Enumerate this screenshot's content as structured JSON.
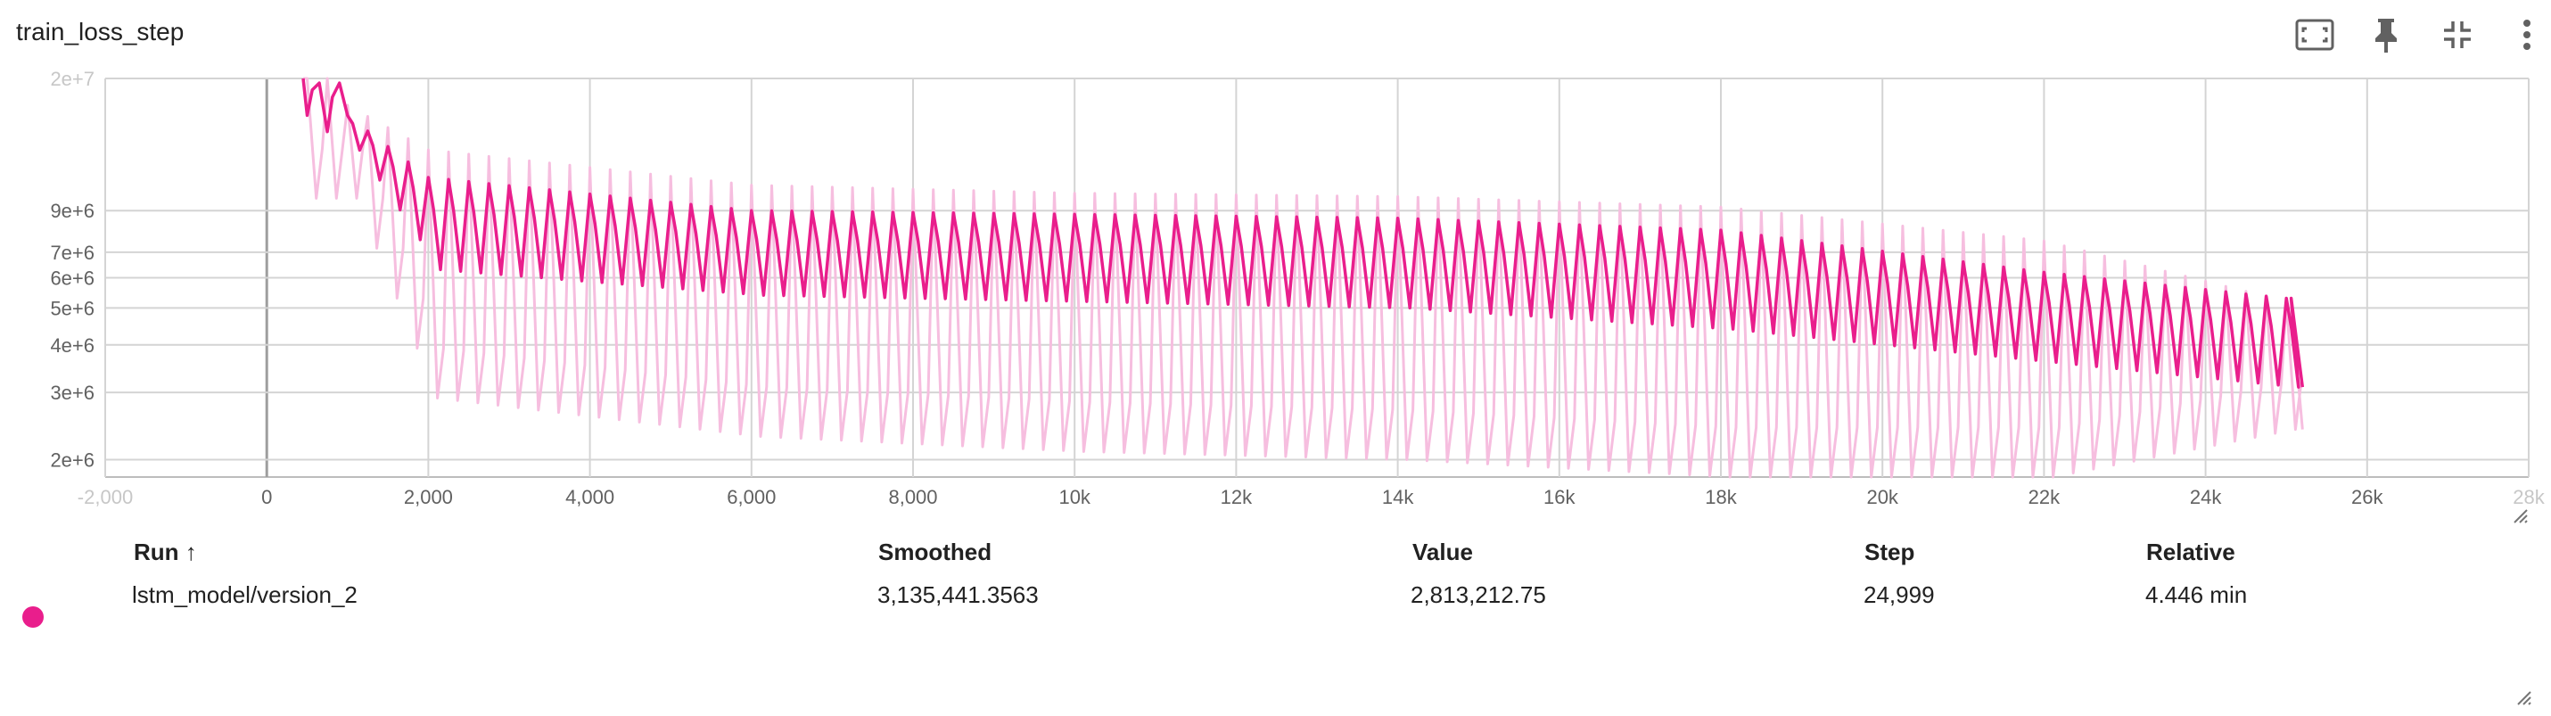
{
  "card": {
    "title": "train_loss_step"
  },
  "toolbar": {
    "icons": [
      "fit-to-data-icon",
      "pin-icon",
      "collapse-icon",
      "more-vert-icon"
    ]
  },
  "colors": {
    "smoothed": "#e91e8c",
    "raw": "#f6bedf",
    "grid": "#d4d4d4",
    "axis_text": "#616161",
    "icon": "#616161"
  },
  "chart_data": {
    "type": "line",
    "xlabel": "",
    "ylabel": "",
    "yscale": "log",
    "xlim": [
      -2000,
      28000
    ],
    "ylim": [
      1800000,
      20000000
    ],
    "x_ticks": [
      "-2,000",
      "0",
      "2,000",
      "4,000",
      "6,000",
      "8,000",
      "10k",
      "12k",
      "14k",
      "16k",
      "18k",
      "20k",
      "22k",
      "24k",
      "26k",
      "28k"
    ],
    "y_ticks": [
      "2e+7",
      "9e+6",
      "7e+6",
      "6e+6",
      "5e+6",
      "4e+6",
      "3e+6",
      "2e+6"
    ],
    "grid": true,
    "series": [
      {
        "name": "lstm_model/version_2",
        "kind": "raw",
        "peaks": [
          [
            400,
            20000000
          ],
          [
            2000,
            13000000
          ],
          [
            6000,
            10500000
          ],
          [
            10000,
            10000000
          ],
          [
            14000,
            9800000
          ],
          [
            18000,
            9200000
          ],
          [
            22000,
            7500000
          ],
          [
            25000,
            5200000
          ]
        ],
        "troughs": [
          [
            400,
            20000000
          ],
          [
            2000,
            2900000
          ],
          [
            6000,
            2300000
          ],
          [
            10000,
            2100000
          ],
          [
            14000,
            2000000
          ],
          [
            18000,
            1800000
          ],
          [
            22000,
            1800000
          ],
          [
            25000,
            2400000
          ]
        ]
      },
      {
        "name": "lstm_model/version_2",
        "kind": "smoothed",
        "peaks": [
          [
            400,
            20000000
          ],
          [
            2000,
            11000000
          ],
          [
            6000,
            9000000
          ],
          [
            10000,
            8800000
          ],
          [
            14000,
            8600000
          ],
          [
            18000,
            8000000
          ],
          [
            22000,
            6200000
          ],
          [
            25000,
            5300000
          ]
        ],
        "troughs": [
          [
            400,
            20000000
          ],
          [
            2000,
            6300000
          ],
          [
            6000,
            5400000
          ],
          [
            10000,
            5200000
          ],
          [
            14000,
            5000000
          ],
          [
            18000,
            4400000
          ],
          [
            22000,
            3600000
          ],
          [
            25000,
            3100000
          ]
        ]
      }
    ]
  },
  "table": {
    "headers": {
      "run": "Run ↑",
      "smoothed": "Smoothed",
      "value": "Value",
      "step": "Step",
      "relative": "Relative"
    },
    "rows": [
      {
        "run": "lstm_model/version_2",
        "smoothed": "3,135,441.3563",
        "value": "2,813,212.75",
        "step": "24,999",
        "relative": "4.446 min"
      }
    ]
  }
}
